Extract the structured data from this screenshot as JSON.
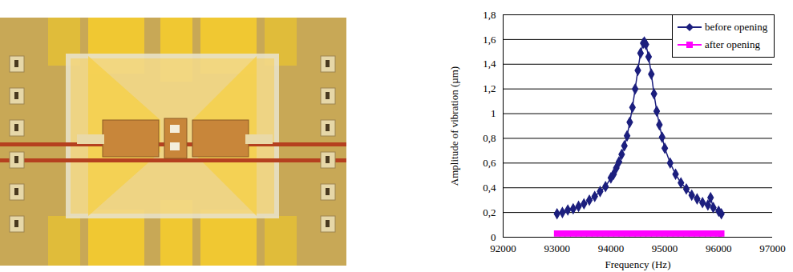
{
  "chart_data": {
    "type": "line",
    "x_label": "Frequency (Hz)",
    "y_label": "Amplitude of vibration (µm)",
    "xlim": [
      92000,
      97000
    ],
    "xticks": [
      92000,
      93000,
      94000,
      95000,
      96000,
      97000
    ],
    "ylim": [
      0,
      1.8
    ],
    "yticks": [
      0,
      {
        "value": 0.2,
        "label": "0,2"
      },
      {
        "value": 0.4,
        "label": "0,4"
      },
      {
        "value": 0.6,
        "label": "0,6"
      },
      {
        "value": 0.8,
        "label": "0,8"
      },
      1,
      {
        "value": 1.2,
        "label": "1,2"
      },
      {
        "value": 1.4,
        "label": "1,4"
      },
      {
        "value": 1.6,
        "label": "1,6"
      },
      {
        "value": 1.8,
        "label": "1,8"
      }
    ],
    "grid": true,
    "legend": "top-right",
    "series": [
      {
        "name": "before opening",
        "color": "#1c1f7e",
        "marker": "diamond",
        "x": [
          93000,
          93100,
          93200,
          93300,
          93400,
          93500,
          93600,
          93700,
          93800,
          93900,
          94000,
          94050,
          94100,
          94150,
          94200,
          94250,
          94300,
          94350,
          94400,
          94450,
          94500,
          94550,
          94600,
          94620,
          94650,
          94700,
          94750,
          94800,
          94850,
          94900,
          94950,
          95000,
          95100,
          95200,
          95300,
          95400,
          95500,
          95600,
          95700,
          95800,
          95850,
          95900,
          96000,
          96050
        ],
        "values": [
          0.19,
          0.2,
          0.22,
          0.23,
          0.25,
          0.27,
          0.3,
          0.33,
          0.37,
          0.41,
          0.48,
          0.51,
          0.56,
          0.61,
          0.67,
          0.74,
          0.82,
          0.93,
          1.05,
          1.2,
          1.35,
          1.49,
          1.57,
          1.58,
          1.56,
          1.46,
          1.32,
          1.16,
          1.02,
          0.91,
          0.81,
          0.72,
          0.6,
          0.51,
          0.44,
          0.39,
          0.34,
          0.31,
          0.28,
          0.26,
          0.32,
          0.24,
          0.21,
          0.19
        ]
      },
      {
        "name": "after opening",
        "color": "#ff00ff",
        "marker": "square",
        "x": [
          93000,
          93100,
          93200,
          93300,
          93400,
          93500,
          93600,
          93700,
          93800,
          93900,
          94000,
          94100,
          94200,
          94300,
          94400,
          94500,
          94600,
          94700,
          94800,
          94900,
          95000,
          95100,
          95200,
          95300,
          95400,
          95500,
          95600,
          95700,
          95800,
          95900,
          96000,
          96050
        ],
        "values": [
          0.03,
          0.03,
          0.03,
          0.03,
          0.03,
          0.03,
          0.03,
          0.03,
          0.03,
          0.03,
          0.03,
          0.03,
          0.03,
          0.03,
          0.03,
          0.03,
          0.03,
          0.03,
          0.03,
          0.03,
          0.03,
          0.03,
          0.03,
          0.03,
          0.03,
          0.03,
          0.03,
          0.03,
          0.03,
          0.03,
          0.03,
          0.03
        ]
      }
    ]
  }
}
